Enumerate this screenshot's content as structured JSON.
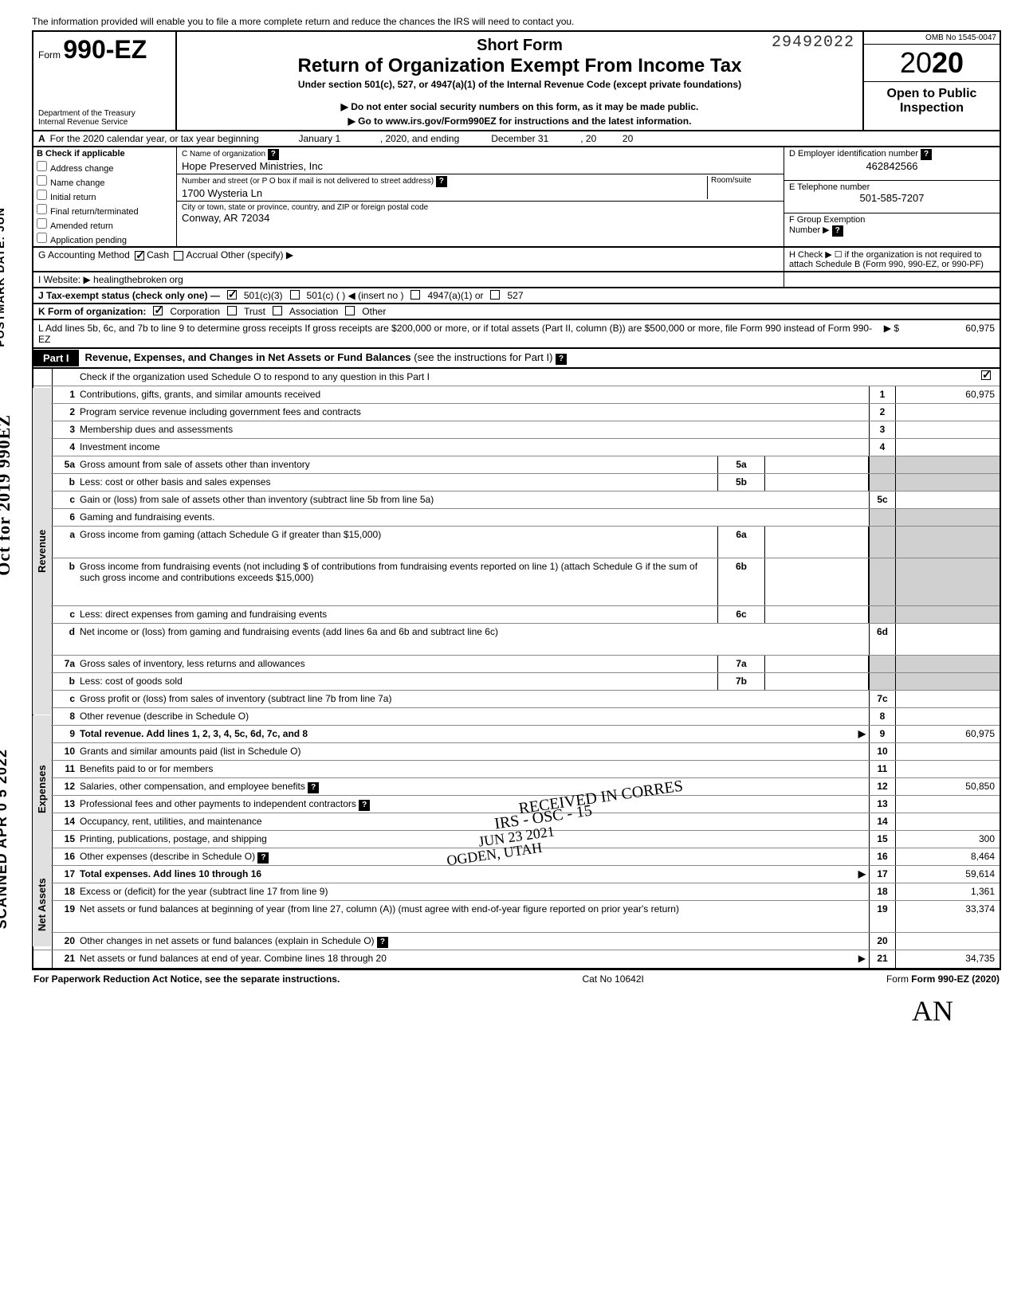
{
  "top_note": "The information provided will enable you to file a more complete return and reduce the chances the IRS will need to contact you.",
  "form": {
    "prefix": "Form",
    "number": "990-EZ",
    "dept1": "Department of the Treasury",
    "dept2": "Internal Revenue Service",
    "title1": "Short Form",
    "title2": "Return of Organization Exempt From Income Tax",
    "subtitle": "Under section 501(c), 527, or 4947(a)(1) of the Internal Revenue Code (except private foundations)",
    "note1": "▶ Do not enter social security numbers on this form, as it may be made public.",
    "note2": "▶ Go to www.irs.gov/Form990EZ for instructions and the latest information.",
    "stamp": "29492022",
    "omb": "OMB No 1545-0047",
    "year_light": "20",
    "year_bold": "20",
    "open1": "Open to Public",
    "open2": "Inspection"
  },
  "rowA": {
    "label": "A",
    "text1": "For the 2020 calendar year, or tax year beginning",
    "begin": "January 1",
    "text2": ", 2020, and ending",
    "end": "December 31",
    "text3": ", 20",
    "yy": "20"
  },
  "B": {
    "hdr": "B Check if applicable",
    "opts": [
      "Address change",
      "Name change",
      "Initial return",
      "Final return/terminated",
      "Amended return",
      "Application pending"
    ]
  },
  "C": {
    "label": "C Name of organization",
    "name": "Hope Preserved Ministries, Inc",
    "addr_label": "Number and street (or P O box if mail is not delivered to street address)",
    "room_label": "Room/suite",
    "addr": "1700 Wysteria Ln",
    "city_label": "City or town, state or province, country, and ZIP or foreign postal code",
    "city": "Conway, AR 72034"
  },
  "D": {
    "label": "D Employer identification number",
    "val": "462842566"
  },
  "E": {
    "label": "E Telephone number",
    "val": "501-585-7207"
  },
  "F": {
    "label": "F Group Exemption",
    "label2": "Number ▶"
  },
  "G": {
    "label": "G Accounting Method",
    "cash": "Cash",
    "accrual": "Accrual",
    "other": "Other (specify) ▶",
    "cash_checked": true
  },
  "H": {
    "text": "H Check ▶ ☐ if the organization is not required to attach Schedule B (Form 990, 990-EZ, or 990-PF)"
  },
  "I": {
    "label": "I  Website: ▶",
    "val": "healingthebroken org"
  },
  "J": {
    "label": "J  Tax-exempt status (check only one) —",
    "opt1": "501(c)(3)",
    "opt1_checked": true,
    "opt2": "501(c) (         ) ◀ (insert no )",
    "opt3": "4947(a)(1) or",
    "opt4": "527"
  },
  "K": {
    "label": "K Form of organization:",
    "opt1": "Corporation",
    "opt1_checked": true,
    "opt2": "Trust",
    "opt3": "Association",
    "opt4": "Other"
  },
  "L": {
    "text": "L  Add lines 5b, 6c, and 7b to line 9 to determine gross receipts  If gross receipts are $200,000 or more, or if total assets (Part II, column (B)) are $500,000 or more, file Form 990 instead of Form 990-EZ",
    "arrow": "▶  $",
    "amt": "60,975"
  },
  "part1": {
    "tag": "Part I",
    "title": "Revenue, Expenses, and Changes in Net Assets or Fund Balances",
    "paren": "(see the instructions for Part I)",
    "check_line": "Check if the organization used Schedule O to respond to any question in this Part I",
    "checked": true
  },
  "tabs": {
    "rev": "Revenue",
    "exp": "Expenses",
    "net": "Net Assets"
  },
  "lines": [
    {
      "n": "1",
      "d": "Contributions, gifts, grants, and similar amounts received",
      "r": "1",
      "a": "60,975"
    },
    {
      "n": "2",
      "d": "Program service revenue including government fees and contracts",
      "r": "2",
      "a": ""
    },
    {
      "n": "3",
      "d": "Membership dues and assessments",
      "r": "3",
      "a": ""
    },
    {
      "n": "4",
      "d": "Investment income",
      "r": "4",
      "a": ""
    },
    {
      "n": "5a",
      "d": "Gross amount from sale of assets other than inventory",
      "sb": "5a"
    },
    {
      "n": "b",
      "d": "Less: cost or other basis and sales expenses",
      "sb": "5b"
    },
    {
      "n": "c",
      "d": "Gain or (loss) from sale of assets other than inventory (subtract line 5b from line 5a)",
      "r": "5c",
      "a": ""
    },
    {
      "n": "6",
      "d": "Gaming and fundraising events."
    },
    {
      "n": "a",
      "d": "Gross income from gaming (attach Schedule G if greater than $15,000)",
      "sb": "6a",
      "tall": true
    },
    {
      "n": "b",
      "d": "Gross income from fundraising events (not including  $                    of contributions from fundraising events reported on line 1) (attach Schedule G if the sum of such gross income and contributions exceeds $15,000)",
      "sb": "6b",
      "taller": true
    },
    {
      "n": "c",
      "d": "Less: direct expenses from gaming and fundraising events",
      "sb": "6c"
    },
    {
      "n": "d",
      "d": "Net income or (loss) from gaming and fundraising events (add lines 6a and 6b and subtract line 6c)",
      "r": "6d",
      "a": "",
      "tall": true
    },
    {
      "n": "7a",
      "d": "Gross sales of inventory, less returns and allowances",
      "sb": "7a"
    },
    {
      "n": "b",
      "d": "Less: cost of goods sold",
      "sb": "7b"
    },
    {
      "n": "c",
      "d": "Gross profit or (loss) from sales of inventory (subtract line 7b from line 7a)",
      "r": "7c",
      "a": ""
    },
    {
      "n": "8",
      "d": "Other revenue (describe in Schedule O)",
      "r": "8",
      "a": ""
    },
    {
      "n": "9",
      "d": "Total revenue. Add lines 1, 2, 3, 4, 5c, 6d, 7c, and 8",
      "r": "9",
      "a": "60,975",
      "bold": true,
      "arrow": true
    },
    {
      "n": "10",
      "d": "Grants and similar amounts paid (list in Schedule O)",
      "r": "10",
      "a": ""
    },
    {
      "n": "11",
      "d": "Benefits paid to or for members",
      "r": "11",
      "a": ""
    },
    {
      "n": "12",
      "d": "Salaries, other compensation, and employee benefits",
      "r": "12",
      "a": "50,850",
      "q": true
    },
    {
      "n": "13",
      "d": "Professional fees and other payments to independent contractors",
      "r": "13",
      "a": "",
      "q": true
    },
    {
      "n": "14",
      "d": "Occupancy, rent, utilities, and maintenance",
      "r": "14",
      "a": ""
    },
    {
      "n": "15",
      "d": "Printing, publications, postage, and shipping",
      "r": "15",
      "a": "300"
    },
    {
      "n": "16",
      "d": "Other expenses (describe in Schedule O)",
      "r": "16",
      "a": "8,464",
      "q": true
    },
    {
      "n": "17",
      "d": "Total expenses. Add lines 10 through 16",
      "r": "17",
      "a": "59,614",
      "bold": true,
      "arrow": true
    },
    {
      "n": "18",
      "d": "Excess or (deficit) for the year (subtract line 17 from line 9)",
      "r": "18",
      "a": "1,361"
    },
    {
      "n": "19",
      "d": "Net assets or fund balances at beginning of year (from line 27, column (A)) (must agree with end-of-year figure reported on prior year's return)",
      "r": "19",
      "a": "33,374",
      "tall": true
    },
    {
      "n": "20",
      "d": "Other changes in net assets or fund balances (explain in Schedule O)",
      "r": "20",
      "a": "",
      "q": true
    },
    {
      "n": "21",
      "d": "Net assets or fund balances at end of year. Combine lines 18 through 20",
      "r": "21",
      "a": "34,735",
      "arrow": true
    }
  ],
  "overlays": {
    "o1": "RECEIVED IN CORRES",
    "o2": "IRS - OSC - 15",
    "o3": "JUN 23 2021",
    "o4": "OGDEN, UTAH"
  },
  "side": {
    "s1": "SCANNED APR 0 5 2022",
    "s2": "Oct for 2019 990EZ",
    "s3": "POSTMARK DATE: JUN"
  },
  "footer": {
    "left": "For Paperwork Reduction Act Notice, see the separate instructions.",
    "mid": "Cat No 10642I",
    "right": "Form 990-EZ (2020)"
  },
  "signature": "AN"
}
